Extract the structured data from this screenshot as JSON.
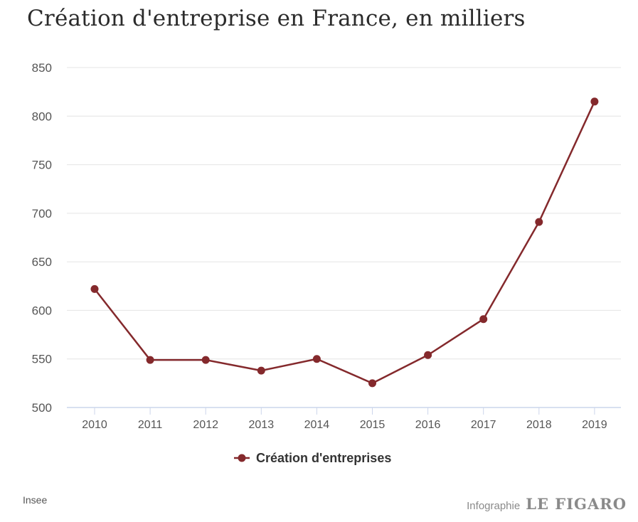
{
  "title": "Création d'entreprise en France, en milliers",
  "source": "Insee",
  "credit": {
    "prefix": "Infographie",
    "brand": "LE FIGARO"
  },
  "chart_data": {
    "type": "line",
    "title": "Création d'entreprise en France, en milliers",
    "xlabel": "",
    "ylabel": "",
    "categories": [
      "2010",
      "2011",
      "2012",
      "2013",
      "2014",
      "2015",
      "2016",
      "2017",
      "2018",
      "2019"
    ],
    "series": [
      {
        "name": "Création d'entreprises",
        "values": [
          622,
          549,
          549,
          538,
          550,
          525,
          554,
          591,
          691,
          815
        ],
        "color": "#84292c"
      }
    ],
    "ylim": [
      500,
      850
    ],
    "yticks": [
      500,
      550,
      600,
      650,
      700,
      750,
      800,
      850
    ],
    "grid": true,
    "legend_position": "bottom-center"
  }
}
